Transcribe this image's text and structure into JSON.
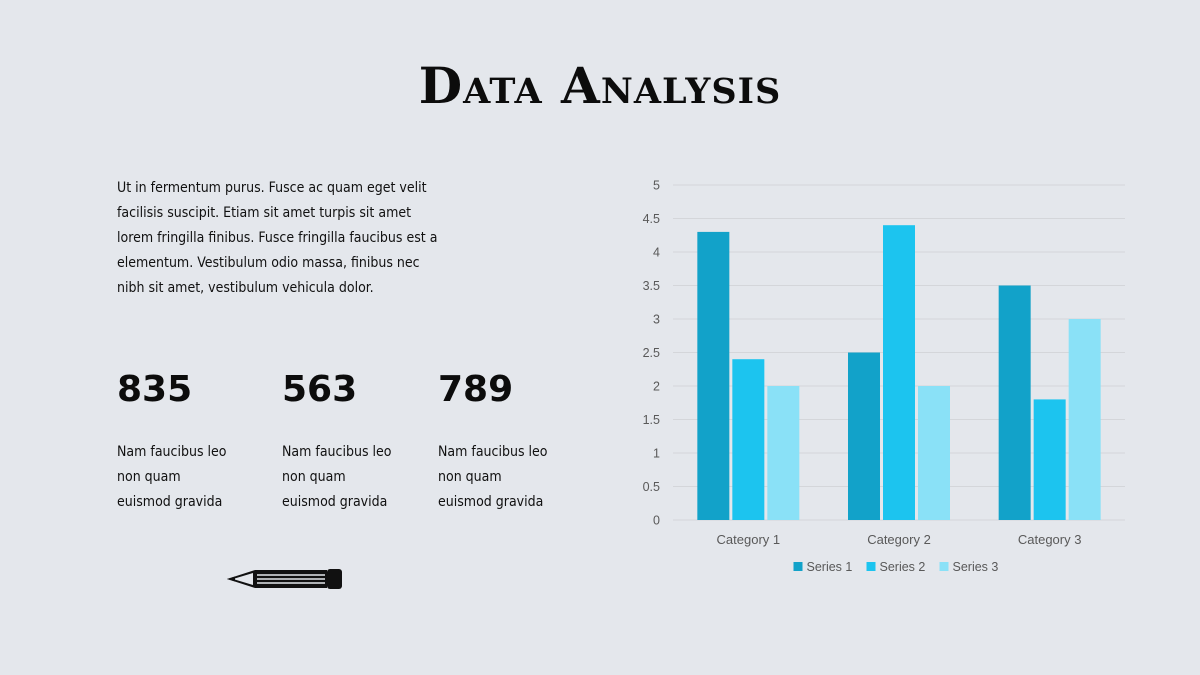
{
  "title": "Data Analysis",
  "body_text": "Ut in fermentum purus. Fusce ac quam eget velit facilisis suscipit. Etiam sit amet turpis sit amet lorem fringilla finibus. Fusce fringilla faucibus est a elementum. Vestibulum odio massa, finibus nec nibh sit amet, vestibulum vehicula dolor.",
  "stats": [
    {
      "number": "835",
      "desc": "Nam faucibus leo non quam euismod gravida"
    },
    {
      "number": "563",
      "desc": "Nam faucibus leo non quam euismod gravida"
    },
    {
      "number": "789",
      "desc": "Nam faucibus leo non quam euismod gravida"
    }
  ],
  "decor": {
    "icon": "pencil-icon"
  },
  "colors": {
    "background": "#e4e7ec",
    "series": [
      "#12a2c9",
      "#1cc4ef",
      "#8ae1f7"
    ],
    "grid": "#d4d6da",
    "axis_text": "#595959"
  },
  "chart_data": {
    "type": "bar",
    "title": "",
    "xlabel": "",
    "ylabel": "",
    "categories": [
      "Category 1",
      "Category 2",
      "Category 3"
    ],
    "series": [
      {
        "name": "Series 1",
        "values": [
          4.3,
          2.5,
          3.5
        ]
      },
      {
        "name": "Series 2",
        "values": [
          2.4,
          4.4,
          1.8
        ]
      },
      {
        "name": "Series 3",
        "values": [
          2.0,
          2.0,
          3.0
        ]
      }
    ],
    "ylim": [
      0,
      5
    ],
    "yticks": [
      "0",
      "0.5",
      "1",
      "1.5",
      "2",
      "2.5",
      "3",
      "3.5",
      "4",
      "4.5",
      "5"
    ],
    "grid": true,
    "legend": "bottom"
  }
}
